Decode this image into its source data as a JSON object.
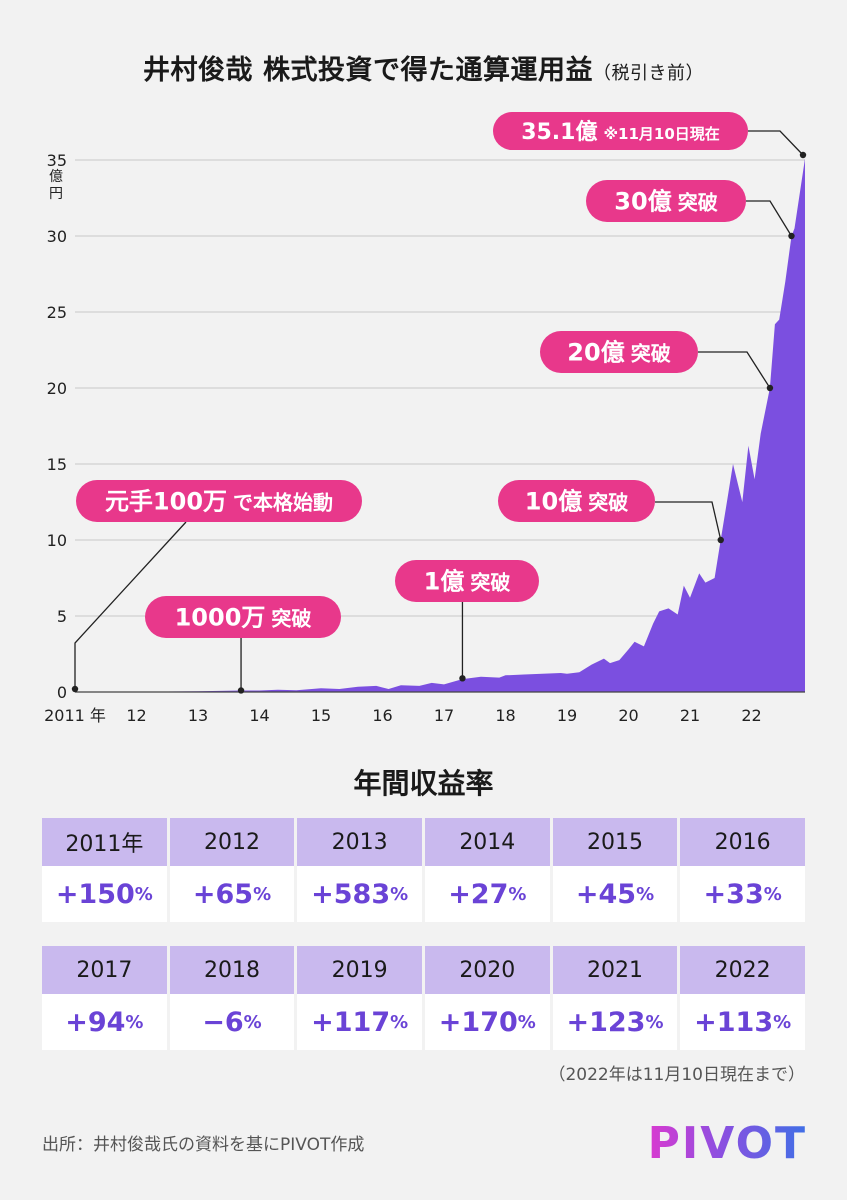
{
  "title": {
    "main": "井村俊哉  株式投資で得た通算運用益",
    "sub": "（税引き前）"
  },
  "chart_data": {
    "type": "area",
    "color": "#7b4fe0",
    "ylim": [
      0,
      35
    ],
    "xlim": [
      2011.0,
      2022.87
    ],
    "ylabel": "億円",
    "y_ticks": [
      "0",
      "5",
      "10",
      "15",
      "20",
      "25",
      "30",
      "35"
    ],
    "x_ticks": [
      {
        "x": 2011.0,
        "label": "2011 年"
      },
      {
        "x": 2012.0,
        "label": "12"
      },
      {
        "x": 2013.0,
        "label": "13"
      },
      {
        "x": 2014.0,
        "label": "14"
      },
      {
        "x": 2015.0,
        "label": "15"
      },
      {
        "x": 2016.0,
        "label": "16"
      },
      {
        "x": 2017.0,
        "label": "17"
      },
      {
        "x": 2018.0,
        "label": "18"
      },
      {
        "x": 2019.0,
        "label": "19"
      },
      {
        "x": 2020.0,
        "label": "20"
      },
      {
        "x": 2021.0,
        "label": "21"
      },
      {
        "x": 2022.0,
        "label": "22"
      }
    ],
    "series": [
      {
        "points": [
          [
            2011.0,
            0.01
          ],
          [
            2012.0,
            0.02
          ],
          [
            2013.0,
            0.05
          ],
          [
            2013.7,
            0.1
          ],
          [
            2014.0,
            0.1
          ],
          [
            2014.3,
            0.15
          ],
          [
            2014.6,
            0.12
          ],
          [
            2015.0,
            0.25
          ],
          [
            2015.3,
            0.2
          ],
          [
            2015.6,
            0.35
          ],
          [
            2015.9,
            0.4
          ],
          [
            2016.1,
            0.2
          ],
          [
            2016.3,
            0.45
          ],
          [
            2016.6,
            0.4
          ],
          [
            2016.8,
            0.6
          ],
          [
            2017.0,
            0.5
          ],
          [
            2017.3,
            0.85
          ],
          [
            2017.6,
            1.0
          ],
          [
            2017.9,
            0.95
          ],
          [
            2018.0,
            1.1
          ],
          [
            2018.3,
            1.15
          ],
          [
            2018.6,
            1.2
          ],
          [
            2018.9,
            1.25
          ],
          [
            2019.0,
            1.2
          ],
          [
            2019.2,
            1.3
          ],
          [
            2019.4,
            1.8
          ],
          [
            2019.6,
            2.2
          ],
          [
            2019.7,
            1.9
          ],
          [
            2019.85,
            2.1
          ],
          [
            2020.0,
            2.8
          ],
          [
            2020.1,
            3.3
          ],
          [
            2020.25,
            3.0
          ],
          [
            2020.4,
            4.5
          ],
          [
            2020.5,
            5.3
          ],
          [
            2020.65,
            5.5
          ],
          [
            2020.8,
            5.1
          ],
          [
            2020.9,
            7.0
          ],
          [
            2021.0,
            6.2
          ],
          [
            2021.15,
            7.8
          ],
          [
            2021.25,
            7.2
          ],
          [
            2021.4,
            7.5
          ],
          [
            2021.5,
            10.0
          ],
          [
            2021.6,
            12.5
          ],
          [
            2021.7,
            15.0
          ],
          [
            2021.85,
            12.5
          ],
          [
            2021.95,
            16.2
          ],
          [
            2022.05,
            14.0
          ],
          [
            2022.15,
            17.0
          ],
          [
            2022.3,
            20.0
          ],
          [
            2022.38,
            24.2
          ],
          [
            2022.45,
            24.5
          ],
          [
            2022.55,
            27.0
          ],
          [
            2022.65,
            30.0
          ],
          [
            2022.7,
            30.5
          ],
          [
            2022.87,
            35.1
          ]
        ]
      }
    ],
    "annotations": [
      {
        "main": "元手100万",
        "small": "で本格始動",
        "x": 2011.0,
        "y": 0.1,
        "box": "p1"
      },
      {
        "main": "1000万",
        "small": "突破",
        "x": 2013.7,
        "y": 0.1,
        "box": "p2"
      },
      {
        "main": "1億",
        "small": "突破",
        "x": 2017.3,
        "y": 0.9,
        "box": "p3"
      },
      {
        "main": "10億",
        "small": "突破",
        "x": 2021.5,
        "y": 10.0,
        "box": "p4"
      },
      {
        "main": "20億",
        "small": "突破",
        "x": 2022.3,
        "y": 20.0,
        "box": "p5"
      },
      {
        "main": "30億",
        "small": "突破",
        "x": 2022.65,
        "y": 30.0,
        "box": "p6"
      },
      {
        "main": "35.1億",
        "small": "※11月10日現在",
        "x": 2022.87,
        "y": 35.1,
        "box": "p7"
      }
    ]
  },
  "returns": {
    "title": "年間収益率",
    "rows": [
      [
        {
          "year": "2011年",
          "value": "+150",
          "unit": "%"
        },
        {
          "year": "2012",
          "value": "+65",
          "unit": "%"
        },
        {
          "year": "2013",
          "value": "+583",
          "unit": "%"
        },
        {
          "year": "2014",
          "value": "+27",
          "unit": "%"
        },
        {
          "year": "2015",
          "value": "+45",
          "unit": "%"
        },
        {
          "year": "2016",
          "value": "+33",
          "unit": "%"
        }
      ],
      [
        {
          "year": "2017",
          "value": "+94",
          "unit": "%"
        },
        {
          "year": "2018",
          "value": "−6",
          "unit": "%"
        },
        {
          "year": "2019",
          "value": "+117",
          "unit": "%"
        },
        {
          "year": "2020",
          "value": "+170",
          "unit": "%"
        },
        {
          "year": "2021",
          "value": "+123",
          "unit": "%"
        },
        {
          "year": "2022",
          "value": "+113",
          "unit": "%"
        }
      ]
    ],
    "note": "（2022年は11月10日現在まで）"
  },
  "footer": {
    "source": "出所：井村俊哉氏の資料を基にPIVOT作成",
    "logo": "PIVOT"
  }
}
